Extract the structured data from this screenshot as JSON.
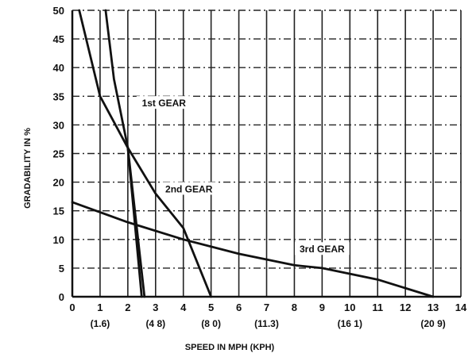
{
  "chart_data": {
    "type": "line",
    "title": "",
    "xlabel": "SPEED IN MPH (KPH)",
    "ylabel": "GRADABILITY IN %",
    "xlim": [
      0,
      14
    ],
    "ylim": [
      0,
      50
    ],
    "x_ticks": [
      0,
      1,
      2,
      3,
      4,
      5,
      6,
      7,
      8,
      9,
      10,
      11,
      12,
      13,
      14
    ],
    "y_ticks": [
      0,
      5,
      10,
      15,
      20,
      25,
      30,
      35,
      40,
      45,
      50
    ],
    "kph_ticks": [
      {
        "mph": 1,
        "label": "(1.6)"
      },
      {
        "mph": 3,
        "label": "(4 8)"
      },
      {
        "mph": 5,
        "label": "(8 0)"
      },
      {
        "mph": 7,
        "label": "(11.3)"
      },
      {
        "mph": 10,
        "label": "(16 1)"
      },
      {
        "mph": 13,
        "label": "(20 9)"
      }
    ],
    "grid": true,
    "series": [
      {
        "name": "1st GEAR",
        "x": [
          0.25,
          1.0,
          2.0,
          2.5
        ],
        "y": [
          50,
          35,
          26,
          0
        ]
      },
      {
        "name": "1st GEAR",
        "x": [
          1.2,
          1.5,
          2.0,
          2.6
        ],
        "y": [
          50,
          38,
          26,
          0
        ]
      },
      {
        "name": "2nd GEAR",
        "x": [
          2.0,
          3.0,
          4.0,
          5.0
        ],
        "y": [
          26,
          18,
          12,
          0
        ]
      },
      {
        "name": "3rd GEAR",
        "x": [
          0,
          2.0,
          4.0,
          6.0,
          8.0,
          9.0,
          11.0,
          13.0
        ],
        "y": [
          16.5,
          13,
          10,
          7.5,
          5.5,
          5,
          3,
          0
        ]
      }
    ],
    "annotations": [
      {
        "text": "1st GEAR",
        "x": 3.3,
        "y": 33.5
      },
      {
        "text": "2nd GEAR",
        "x": 4.2,
        "y": 18.5
      },
      {
        "text": "3rd GEAR",
        "x": 9.0,
        "y": 8.0
      }
    ]
  }
}
